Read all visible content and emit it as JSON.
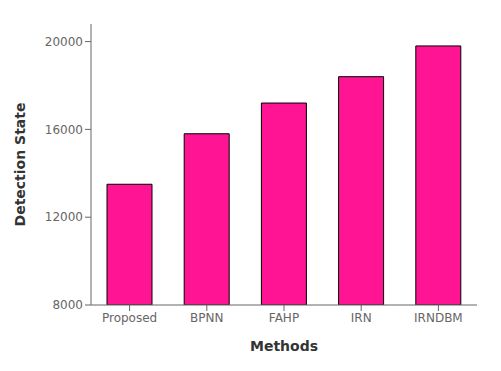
{
  "chart_data": {
    "type": "bar",
    "xlabel": "Methods",
    "ylabel": "Detection State",
    "categories": [
      "Proposed",
      "BPNN",
      "FAHP",
      "IRN",
      "IRNDBM"
    ],
    "values": [
      13500,
      15800,
      17200,
      18400,
      19800
    ],
    "color": "#FF1493",
    "ylim": [
      8000,
      20800
    ],
    "yticks": [
      8000,
      12000,
      16000,
      20000
    ],
    "grid": false
  }
}
